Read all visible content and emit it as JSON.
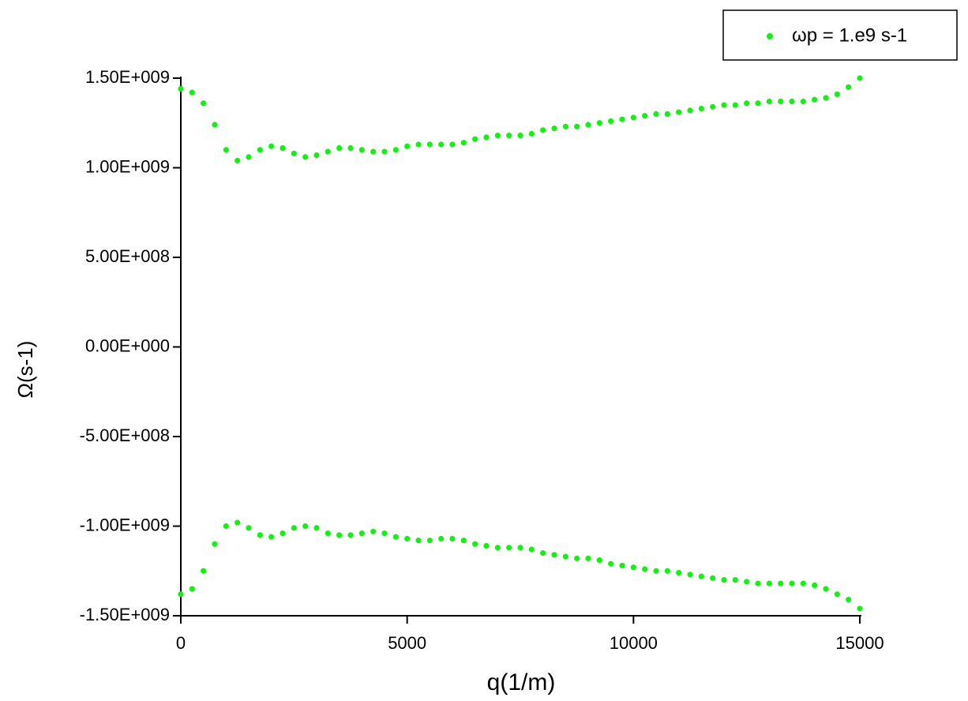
{
  "chart_data": {
    "type": "scatter",
    "xlabel": "q(1/m)",
    "ylabel": "Ω(s-1)",
    "xlim": [
      0,
      15000
    ],
    "ylim": [
      -1500000000.0,
      1500000000.0
    ],
    "xticks": [
      0,
      5000,
      10000,
      15000
    ],
    "yticks": [
      {
        "value": -1500000000.0,
        "label": "-1.50E+009"
      },
      {
        "value": -1000000000.0,
        "label": "-1.00E+009"
      },
      {
        "value": -500000000.0,
        "label": "-5.00E+008"
      },
      {
        "value": 0,
        "label": "0.00E+000"
      },
      {
        "value": 500000000.0,
        "label": "5.00E+008"
      },
      {
        "value": 1000000000.0,
        "label": "1.00E+009"
      },
      {
        "value": 1500000000.0,
        "label": "1.50E+009"
      }
    ],
    "grid": false,
    "legend": "upper-right",
    "series": [
      {
        "name": "ωp = 1.e9 s-1",
        "color": "#14f014",
        "x": [
          0,
          250,
          500,
          750,
          1000,
          1250,
          1500,
          1750,
          2000,
          2250,
          2500,
          2750,
          3000,
          3250,
          3500,
          3750,
          4000,
          4250,
          4500,
          4750,
          5000,
          5250,
          5500,
          5750,
          6000,
          6250,
          6500,
          6750,
          7000,
          7250,
          7500,
          7750,
          8000,
          8250,
          8500,
          8750,
          9000,
          9250,
          9500,
          9750,
          10000,
          10250,
          10500,
          10750,
          11000,
          11250,
          11500,
          11750,
          12000,
          12250,
          12500,
          12750,
          13000,
          13250,
          13500,
          13750,
          14000,
          14250,
          14500,
          14750,
          15000,
          0,
          250,
          500,
          750,
          1000,
          1250,
          1500,
          1750,
          2000,
          2250,
          2500,
          2750,
          3000,
          3250,
          3500,
          3750,
          4000,
          4250,
          4500,
          4750,
          5000,
          5250,
          5500,
          5750,
          6000,
          6250,
          6500,
          6750,
          7000,
          7250,
          7500,
          7750,
          8000,
          8250,
          8500,
          8750,
          9000,
          9250,
          9500,
          9750,
          10000,
          10250,
          10500,
          10750,
          11000,
          11250,
          11500,
          11750,
          12000,
          12250,
          12500,
          12750,
          13000,
          13250,
          13500,
          13750,
          14000,
          14250,
          14500,
          14750,
          15000
        ],
        "values": [
          1440000000.0,
          1420000000.0,
          1360000000.0,
          1240000000.0,
          1100000000.0,
          1040000000.0,
          1060000000.0,
          1100000000.0,
          1120000000.0,
          1110000000.0,
          1080000000.0,
          1060000000.0,
          1070000000.0,
          1090000000.0,
          1110000000.0,
          1110000000.0,
          1100000000.0,
          1090000000.0,
          1090000000.0,
          1100000000.0,
          1120000000.0,
          1130000000.0,
          1130000000.0,
          1130000000.0,
          1130000000.0,
          1140000000.0,
          1160000000.0,
          1170000000.0,
          1180000000.0,
          1180000000.0,
          1180000000.0,
          1190000000.0,
          1210000000.0,
          1220000000.0,
          1230000000.0,
          1230000000.0,
          1240000000.0,
          1250000000.0,
          1260000000.0,
          1270000000.0,
          1280000000.0,
          1290000000.0,
          1300000000.0,
          1300000000.0,
          1310000000.0,
          1320000000.0,
          1330000000.0,
          1340000000.0,
          1350000000.0,
          1350000000.0,
          1360000000.0,
          1360000000.0,
          1370000000.0,
          1370000000.0,
          1370000000.0,
          1370000000.0,
          1380000000.0,
          1390000000.0,
          1410000000.0,
          1450000000.0,
          1500000000.0,
          -1380000000.0,
          -1350000000.0,
          -1250000000.0,
          -1100000000.0,
          -1000000000.0,
          -980000000.0,
          -1010000000.0,
          -1050000000.0,
          -1060000000.0,
          -1040000000.0,
          -1010000000.0,
          -1000000000.0,
          -1010000000.0,
          -1040000000.0,
          -1050000000.0,
          -1050000000.0,
          -1040000000.0,
          -1030000000.0,
          -1040000000.0,
          -1060000000.0,
          -1070000000.0,
          -1080000000.0,
          -1080000000.0,
          -1070000000.0,
          -1070000000.0,
          -1080000000.0,
          -1100000000.0,
          -1110000000.0,
          -1120000000.0,
          -1120000000.0,
          -1120000000.0,
          -1130000000.0,
          -1150000000.0,
          -1160000000.0,
          -1170000000.0,
          -1180000000.0,
          -1180000000.0,
          -1190000000.0,
          -1210000000.0,
          -1220000000.0,
          -1230000000.0,
          -1240000000.0,
          -1250000000.0,
          -1250000000.0,
          -1260000000.0,
          -1270000000.0,
          -1280000000.0,
          -1290000000.0,
          -1300000000.0,
          -1300000000.0,
          -1310000000.0,
          -1320000000.0,
          -1320000000.0,
          -1320000000.0,
          -1320000000.0,
          -1320000000.0,
          -1330000000.0,
          -1350000000.0,
          -1380000000.0,
          -1410000000.0,
          -1460000000.0
        ]
      }
    ]
  }
}
